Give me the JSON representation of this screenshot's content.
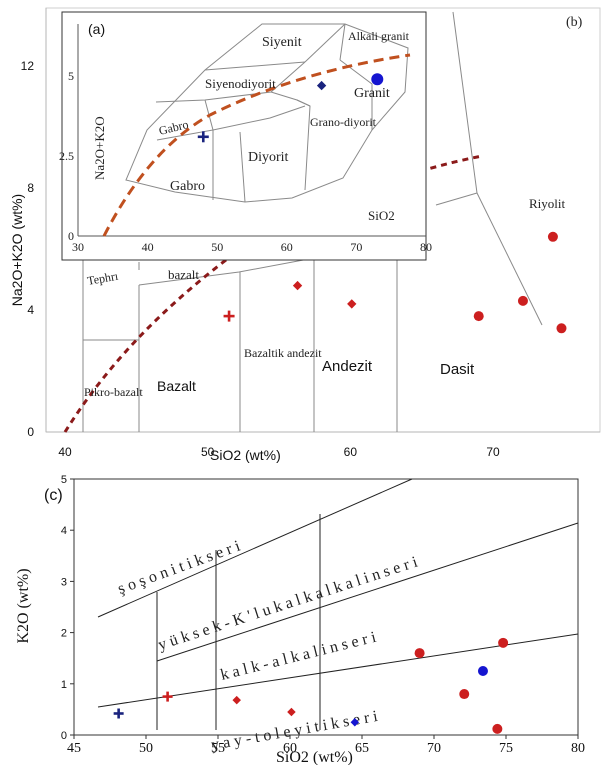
{
  "chart_data": [
    {
      "type": "scatter",
      "panel_label": "(b)",
      "xlabel": "SiO2 (wt%)",
      "ylabel": "Na2O+K2O (wt%)",
      "xlim": [
        37,
        80
      ],
      "ylim": [
        0,
        14
      ],
      "xticks": [
        "40",
        "50",
        "60",
        "70"
      ],
      "yticks": [
        "0",
        "4",
        "8",
        "12"
      ],
      "fields": [
        {
          "id": "pikrobazalt",
          "label": "Pikro-bazalt"
        },
        {
          "id": "bazalt",
          "label": "Bazalt"
        },
        {
          "id": "bazaltik",
          "label": "Bazaltik andezit"
        },
        {
          "id": "andezit",
          "label": "Andezit"
        },
        {
          "id": "dasit",
          "label": "Dasit"
        },
        {
          "id": "riyolit",
          "label": "Riyolit"
        },
        {
          "id": "tephri",
          "label": "Tephrı"
        },
        {
          "id": "bazalt2",
          "label": "bazalt"
        }
      ],
      "series": [
        {
          "marker": "plus",
          "color": "#cc1f1f",
          "points": [
            [
              51.5,
              3.8
            ]
          ]
        },
        {
          "marker": "diamond",
          "color": "#cc1f1f",
          "points": [
            [
              56.3,
              4.8
            ],
            [
              60.1,
              4.2
            ]
          ]
        },
        {
          "marker": "circle",
          "color": "#cc1f1f",
          "points": [
            [
              69.0,
              3.8
            ],
            [
              72.1,
              4.3
            ],
            [
              74.2,
              6.4
            ],
            [
              74.8,
              3.4
            ]
          ]
        }
      ]
    },
    {
      "type": "scatter",
      "panel_label": "(a)",
      "xlabel": "SiO2",
      "ylabel": "Na2O+K2O",
      "xlim": [
        30,
        80
      ],
      "ylim": [
        0,
        7
      ],
      "xticks": [
        "30",
        "40",
        "50",
        "60",
        "70",
        "80"
      ],
      "yticks": [
        "0",
        "2.5",
        "5"
      ],
      "fields": [
        {
          "id": "siyenit",
          "label": "Siyenit"
        },
        {
          "id": "alkali",
          "label": "Alkali granit"
        },
        {
          "id": "siyenodiyorit",
          "label": "Siyenodiyorit"
        },
        {
          "id": "granit",
          "label": "Granit"
        },
        {
          "id": "grano",
          "label": "Grano-diyorit"
        },
        {
          "id": "gabro1",
          "label": "Gabro"
        },
        {
          "id": "diyorit",
          "label": "Diyorit"
        },
        {
          "id": "gabro2",
          "label": "Gabro"
        }
      ],
      "series": [
        {
          "marker": "plus",
          "color": "#1a237e",
          "points": [
            [
              48,
              3.1
            ]
          ]
        },
        {
          "marker": "diamond",
          "color": "#1a237e",
          "points": [
            [
              65,
              4.7
            ]
          ]
        },
        {
          "marker": "circle",
          "color": "#1515d0",
          "points": [
            [
              73,
              4.9
            ]
          ]
        }
      ]
    },
    {
      "type": "scatter",
      "panel_label": "(c)",
      "xlabel": "SiO2 (wt%)",
      "ylabel": "K2O (wt%)",
      "xlim": [
        45,
        80
      ],
      "ylim": [
        0,
        5
      ],
      "xticks": [
        "45",
        "50",
        "55",
        "60",
        "65",
        "70",
        "75",
        "80"
      ],
      "yticks": [
        "0",
        "1",
        "2",
        "3",
        "4",
        "5"
      ],
      "series_labels": [
        {
          "id": "sos",
          "label": "ş o ş o n i t i k   s e r i"
        },
        {
          "id": "yuk",
          "label": "y ü k s e k - K ' l u   k a l k a l k a l i n   s e r i"
        },
        {
          "id": "kalk",
          "label": "k a l k - a l k a l i n   s e r i"
        },
        {
          "id": "toley",
          "label": "y a y - t o l e y i t i k   s e r i"
        }
      ],
      "series": [
        {
          "marker": "plus",
          "color": "#cc1f1f",
          "points": [
            [
              51.5,
              0.75
            ]
          ]
        },
        {
          "marker": "diamond",
          "color": "#cc1f1f",
          "points": [
            [
              56.3,
              0.68
            ],
            [
              60.1,
              0.45
            ]
          ]
        },
        {
          "marker": "circle",
          "color": "#cc1f1f",
          "points": [
            [
              69.0,
              1.6
            ],
            [
              72.1,
              0.8
            ],
            [
              74.8,
              1.8
            ],
            [
              74.4,
              0.12
            ]
          ]
        },
        {
          "marker": "plus",
          "color": "#1a237e",
          "points": [
            [
              48.1,
              0.42
            ]
          ]
        },
        {
          "marker": "diamond",
          "color": "#1515d0",
          "points": [
            [
              64.5,
              0.25
            ]
          ]
        },
        {
          "marker": "circle",
          "color": "#1515d0",
          "points": [
            [
              73.4,
              1.25
            ]
          ]
        }
      ]
    }
  ]
}
